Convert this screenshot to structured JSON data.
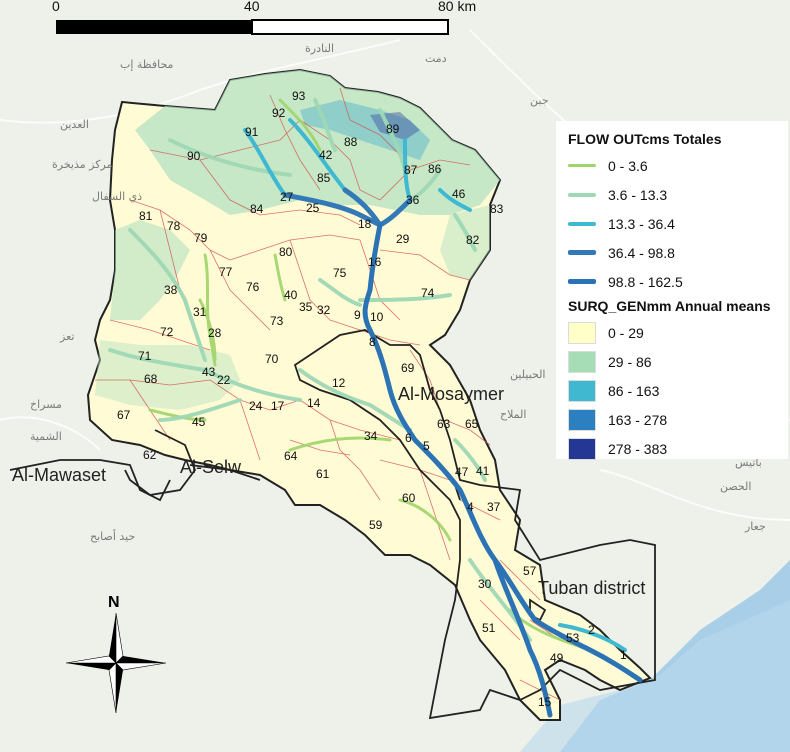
{
  "scalebar": {
    "ticks": [
      "0",
      "40",
      "80 km"
    ]
  },
  "north_arrow": {
    "label": "N"
  },
  "places": {
    "al_mosaymer": "Al-Mosaymer",
    "al_mawaset": "Al-Mawaset",
    "al_selw": "Al-Selw",
    "tuban": "Tuban district"
  },
  "basemap_labels": [
    "محافظة إب",
    "الحبيلين",
    "النادرة",
    "دمت",
    "جبن",
    "العدين",
    "مركز مذيخرة",
    "ذي السفال",
    "تعز",
    "الشمية",
    "مسراخ",
    "الملاح",
    "الحصن",
    "باتيس",
    "جعار",
    "حيد أصابح"
  ],
  "subbasins": [
    "93",
    "92",
    "91",
    "90",
    "89",
    "88",
    "87",
    "86",
    "46",
    "42",
    "85",
    "36",
    "84",
    "27",
    "25",
    "18",
    "83",
    "82",
    "29",
    "81",
    "78",
    "79",
    "16",
    "80",
    "77",
    "76",
    "75",
    "74",
    "38",
    "40",
    "35",
    "32",
    "73",
    "31",
    "28",
    "9",
    "10",
    "72",
    "8",
    "71",
    "70",
    "69",
    "68",
    "43",
    "22",
    "12",
    "67",
    "17",
    "24",
    "14",
    "45",
    "63",
    "65",
    "34",
    "6",
    "5",
    "62",
    "64",
    "47",
    "41",
    "61",
    "60",
    "4",
    "37",
    "59",
    "57",
    "30",
    "51",
    "2",
    "53",
    "49",
    "1",
    "15"
  ],
  "legend": {
    "flow_title": "FLOW OUTcms Totales",
    "flow_classes": [
      {
        "label": "0 - 3.6",
        "color": "#9fd46a",
        "width": 3
      },
      {
        "label": "3.6 - 13.3",
        "color": "#9fd8b5",
        "width": 4
      },
      {
        "label": "13.3 - 36.4",
        "color": "#3fb8d1",
        "width": 4
      },
      {
        "label": "36.4 - 98.8",
        "color": "#3479b7",
        "width": 5
      },
      {
        "label": "98.8 - 162.5",
        "color": "#2b73b4",
        "width": 5
      }
    ],
    "surq_title": "SURQ_GENmm Annual means",
    "surq_classes": [
      {
        "label": "0 - 29",
        "color": "#ffffc8"
      },
      {
        "label": "29 - 86",
        "color": "#a6dcb6"
      },
      {
        "label": "86 - 163",
        "color": "#40b9d0"
      },
      {
        "label": "163 - 278",
        "color": "#2d80c0"
      },
      {
        "label": "278 - 383",
        "color": "#253794"
      }
    ]
  }
}
